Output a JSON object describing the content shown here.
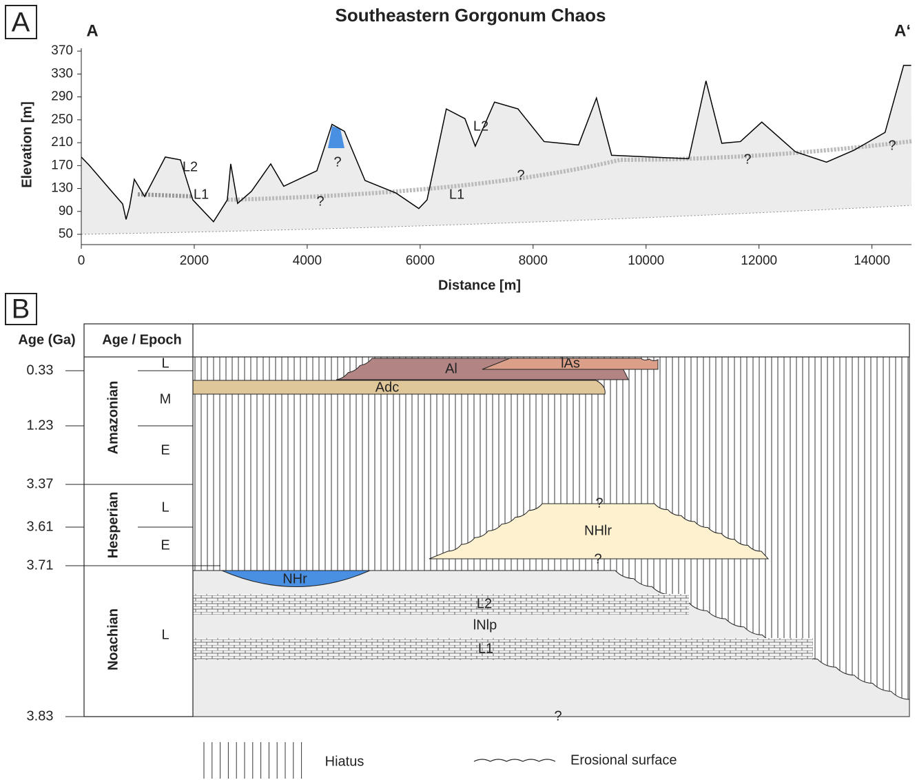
{
  "panel_a_label": "A",
  "chart_data": {
    "type": "area",
    "title": "Southeastern Gorgonum Chaos",
    "xlabel": "Distance [m]",
    "ylabel": "Elevation [m]",
    "start_label": "A",
    "end_label": "A‘",
    "x": [
      0,
      146,
      512,
      732,
      793,
      854,
      939,
      1122,
      1488,
      1756,
      1976,
      2341,
      2585,
      2646,
      2768,
      3012,
      3354,
      3585,
      4171,
      4439,
      4659,
      5024,
      5573,
      5976,
      6122,
      6463,
      6793,
      6976,
      7317,
      7732,
      8195,
      8805,
      9122,
      9390,
      10756,
      11061,
      11341,
      11671,
      12049,
      12646,
      13195,
      13683,
      14232,
      14561,
      14695
    ],
    "values": [
      185,
      170,
      128,
      103,
      76,
      98,
      146,
      116,
      185,
      180,
      110,
      72,
      110,
      173,
      104,
      125,
      173,
      134,
      161,
      242,
      230,
      144,
      122,
      95,
      110,
      269,
      252,
      204,
      281,
      269,
      212,
      206,
      288,
      188,
      182,
      318,
      209,
      212,
      246,
      194,
      176,
      197,
      228,
      345,
      345
    ],
    "color": "#000000",
    "fill": "#ececec",
    "xlim": [
      0,
      14700
    ],
    "ylim": [
      32,
      375
    ],
    "xticks": [
      0,
      2000,
      4000,
      6000,
      8000,
      10000,
      12000,
      14000
    ],
    "yticks": [
      50,
      90,
      130,
      170,
      210,
      250,
      290,
      330,
      370
    ],
    "annotations": [
      "L2",
      "L1",
      "?",
      "?",
      "L2",
      "L1",
      "?",
      "?",
      "?"
    ]
  },
  "panel_b": {
    "label": "B",
    "headers": [
      "Age (Ga)",
      "Age / Epoch"
    ],
    "ages": [
      0.33,
      1.23,
      3.37,
      3.61,
      3.71,
      3.83
    ],
    "periods": [
      "Amazonian",
      "Hesperian",
      "Noachian"
    ],
    "epochs": [
      "L",
      "M",
      "E",
      "L",
      "E",
      "L"
    ],
    "units": [
      "Al",
      "lAs",
      "Adc",
      "NHlr",
      "NHr",
      "L2",
      "lNlp",
      "L1"
    ],
    "unknowns": [
      "?",
      "?",
      "?"
    ]
  },
  "legend": [
    "Hiatus",
    "Erosional surface"
  ]
}
